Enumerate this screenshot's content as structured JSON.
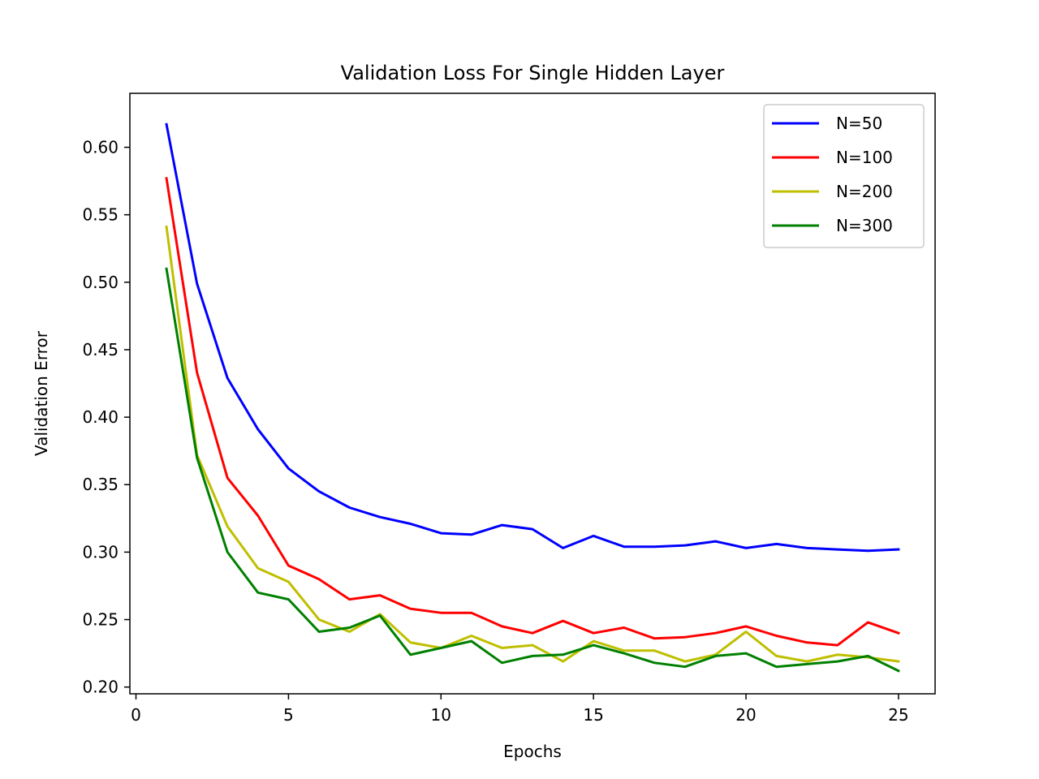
{
  "chart_data": {
    "type": "line",
    "title": "Validation Loss For Single Hidden Layer",
    "xlabel": "Epochs",
    "ylabel": "Validation Error",
    "xlim": [
      -0.2,
      26.2
    ],
    "ylim": [
      0.195,
      0.64
    ],
    "xticks": [
      0,
      5,
      10,
      15,
      20,
      25
    ],
    "xtick_labels": [
      "0",
      "5",
      "10",
      "15",
      "20",
      "25"
    ],
    "yticks": [
      0.2,
      0.25,
      0.3,
      0.35,
      0.4,
      0.45,
      0.5,
      0.55,
      0.6
    ],
    "ytick_labels": [
      "0.20",
      "0.25",
      "0.30",
      "0.35",
      "0.40",
      "0.45",
      "0.50",
      "0.55",
      "0.60"
    ],
    "grid": false,
    "legend_position": "top-right",
    "x": [
      1,
      2,
      3,
      4,
      5,
      6,
      7,
      8,
      9,
      10,
      11,
      12,
      13,
      14,
      15,
      16,
      17,
      18,
      19,
      20,
      21,
      22,
      23,
      24,
      25
    ],
    "series": [
      {
        "name": "N=50",
        "color": "#0000ff",
        "values": [
          0.617,
          0.499,
          0.429,
          0.391,
          0.362,
          0.345,
          0.333,
          0.326,
          0.321,
          0.314,
          0.313,
          0.32,
          0.317,
          0.303,
          0.312,
          0.304,
          0.304,
          0.305,
          0.308,
          0.303,
          0.306,
          0.303,
          0.302,
          0.301,
          0.302
        ]
      },
      {
        "name": "N=100",
        "color": "#ff0000",
        "values": [
          0.577,
          0.433,
          0.355,
          0.327,
          0.29,
          0.28,
          0.265,
          0.268,
          0.258,
          0.255,
          0.255,
          0.245,
          0.24,
          0.249,
          0.24,
          0.244,
          0.236,
          0.237,
          0.24,
          0.245,
          0.238,
          0.233,
          0.231,
          0.248,
          0.24
        ]
      },
      {
        "name": "N=200",
        "color": "#bfbf00",
        "values": [
          0.541,
          0.372,
          0.319,
          0.288,
          0.278,
          0.25,
          0.241,
          0.254,
          0.233,
          0.229,
          0.238,
          0.229,
          0.231,
          0.219,
          0.234,
          0.227,
          0.227,
          0.219,
          0.224,
          0.241,
          0.223,
          0.219,
          0.224,
          0.222,
          0.219
        ]
      },
      {
        "name": "N=300",
        "color": "#008000",
        "values": [
          0.51,
          0.37,
          0.3,
          0.27,
          0.265,
          0.241,
          0.244,
          0.253,
          0.224,
          0.229,
          0.234,
          0.218,
          0.223,
          0.224,
          0.231,
          0.225,
          0.218,
          0.215,
          0.223,
          0.225,
          0.215,
          0.217,
          0.219,
          0.223,
          0.212
        ]
      }
    ]
  }
}
